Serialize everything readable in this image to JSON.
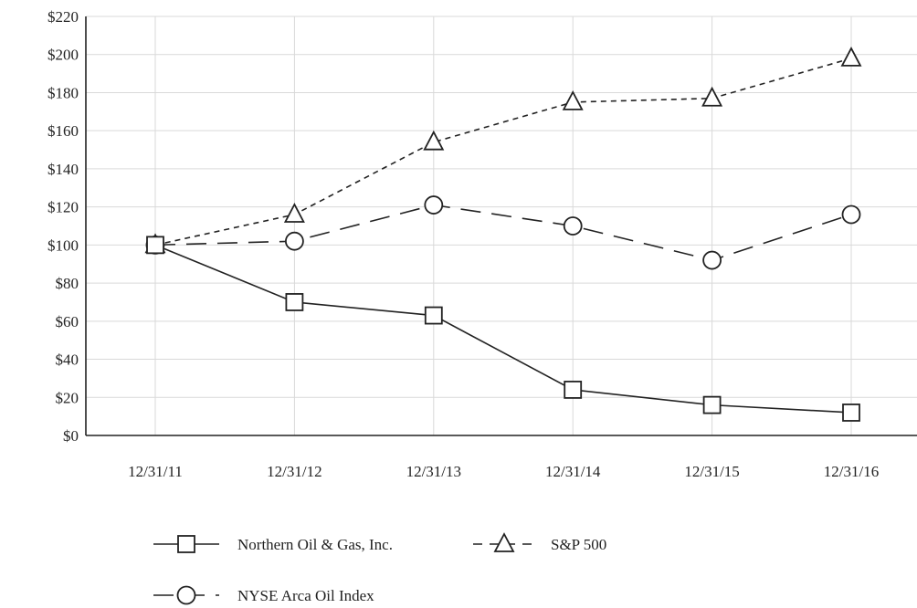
{
  "chart_data": {
    "type": "line",
    "title": "",
    "xlabel": "",
    "ylabel": "",
    "categories": [
      "12/31/11",
      "12/31/12",
      "12/31/13",
      "12/31/14",
      "12/31/15",
      "12/31/16"
    ],
    "ylim": [
      0,
      220
    ],
    "yticks": [
      "$0",
      "$20",
      "$40",
      "$60",
      "$80",
      "$100",
      "$120",
      "$140",
      "$160",
      "$180",
      "$200",
      "$220"
    ],
    "grid": true,
    "legend_position": "bottom-left",
    "series": [
      {
        "name": "Northern Oil & Gas, Inc.",
        "values": [
          100,
          70,
          63,
          24,
          16,
          12
        ],
        "marker": "square",
        "line_style": "solid",
        "color": "#222222"
      },
      {
        "name": "S&P 500",
        "values": [
          100,
          116,
          154,
          175,
          177,
          198
        ],
        "marker": "triangle",
        "line_style": "dotted",
        "color": "#222222"
      },
      {
        "name": "NYSE Arca Oil Index",
        "values": [
          100,
          102,
          121,
          110,
          92,
          116
        ],
        "marker": "circle",
        "line_style": "dashed",
        "color": "#222222"
      }
    ]
  }
}
